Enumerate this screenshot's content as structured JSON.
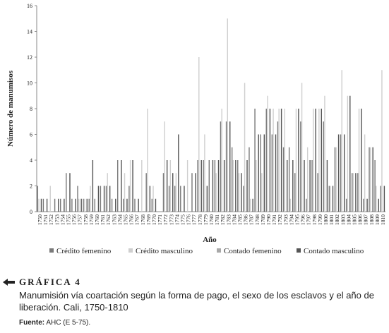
{
  "chart_data": {
    "type": "bar",
    "xlabel": "Año",
    "ylabel": "Número de manumisos",
    "categories": [
      "1750",
      "1751",
      "1752",
      "1753",
      "1754",
      "1755",
      "1756",
      "1757",
      "1758",
      "1759",
      "1760",
      "1761",
      "1762",
      "1763",
      "1764",
      "1765",
      "1766",
      "1767",
      "1768",
      "1769",
      "1770",
      "1771",
      "1772",
      "1773",
      "1774",
      "1775",
      "1776",
      "1777",
      "1778",
      "1779",
      "1780",
      "1781",
      "1782",
      "1783",
      "1784",
      "1785",
      "1786",
      "1787",
      "1788",
      "1789",
      "1790",
      "1791",
      "1792",
      "1793",
      "1794",
      "1795",
      "1796",
      "1797",
      "1798",
      "1799",
      "1800",
      "1801",
      "1802",
      "1803",
      "1804",
      "1805",
      "1806",
      "1807",
      "1808",
      "1809",
      "1810"
    ],
    "series": [
      {
        "name": "Crédito femenino",
        "color": "#7a7a7a",
        "values": [
          2,
          1,
          0,
          1,
          1,
          3,
          1,
          2,
          1,
          1,
          1,
          2,
          2,
          1,
          4,
          1,
          2,
          1,
          0,
          3,
          1,
          0,
          3,
          2,
          2,
          2,
          0,
          3,
          4,
          4,
          4,
          4,
          7,
          7,
          5,
          4,
          2,
          5,
          8,
          6,
          8,
          6,
          7,
          5,
          5,
          3,
          7,
          1,
          4,
          3,
          7,
          2,
          5,
          6,
          1,
          3,
          3,
          1,
          5,
          4,
          2
        ]
      },
      {
        "name": "Crédito masculino",
        "color": "#cfcfcf",
        "values": [
          1,
          0,
          2,
          0,
          0,
          0,
          0,
          1,
          1,
          2,
          0,
          0,
          3,
          0,
          0,
          3,
          4,
          0,
          4,
          8,
          2,
          0,
          7,
          4,
          3,
          0,
          4,
          0,
          12,
          6,
          0,
          3,
          8,
          15,
          4,
          3,
          10,
          1,
          4,
          3,
          9,
          8,
          8,
          8,
          1,
          8,
          10,
          5,
          8,
          8,
          9,
          2,
          5,
          11,
          9,
          3,
          8,
          6,
          5,
          2,
          11
        ]
      },
      {
        "name": "Contado femenino",
        "color": "#a8a8a8",
        "values": [
          0,
          0,
          0,
          0,
          0,
          0,
          0,
          0,
          0,
          0,
          0,
          0,
          0,
          0,
          0,
          0,
          0,
          0,
          0,
          0,
          0,
          0,
          0,
          0,
          0,
          0,
          0,
          0,
          0,
          0,
          0,
          0,
          0,
          0,
          0,
          0,
          0,
          0,
          0,
          0,
          0,
          0,
          0,
          0,
          0,
          0,
          0,
          0,
          0,
          0,
          0,
          0,
          0,
          0,
          0,
          0,
          0,
          0,
          0,
          0,
          0
        ]
      },
      {
        "name": "Contado masculino",
        "color": "#555555",
        "values": [
          1,
          1,
          0,
          1,
          1,
          3,
          1,
          1,
          1,
          4,
          2,
          2,
          2,
          1,
          4,
          1,
          4,
          1,
          0,
          2,
          1,
          0,
          4,
          3,
          6,
          2,
          0,
          3,
          4,
          2,
          4,
          4,
          4,
          7,
          4,
          3,
          4,
          1,
          6,
          6,
          8,
          6,
          8,
          4,
          4,
          8,
          4,
          4,
          8,
          8,
          4,
          2,
          6,
          6,
          9,
          3,
          8,
          1,
          5,
          1,
          2
        ]
      }
    ],
    "ylim": [
      0,
      16
    ],
    "yticks": [
      0,
      2,
      4,
      6,
      8,
      10,
      12,
      14,
      16
    ],
    "grid": false
  },
  "figure": {
    "label": "GRÁFICA 4",
    "caption": "Manumisión vía coartación según la forma de pago, el sexo de los esclavos y el año de liberación. Cali, 1750-1810",
    "source_label": "Fuente:",
    "source": "AHC (E 5-75)."
  }
}
